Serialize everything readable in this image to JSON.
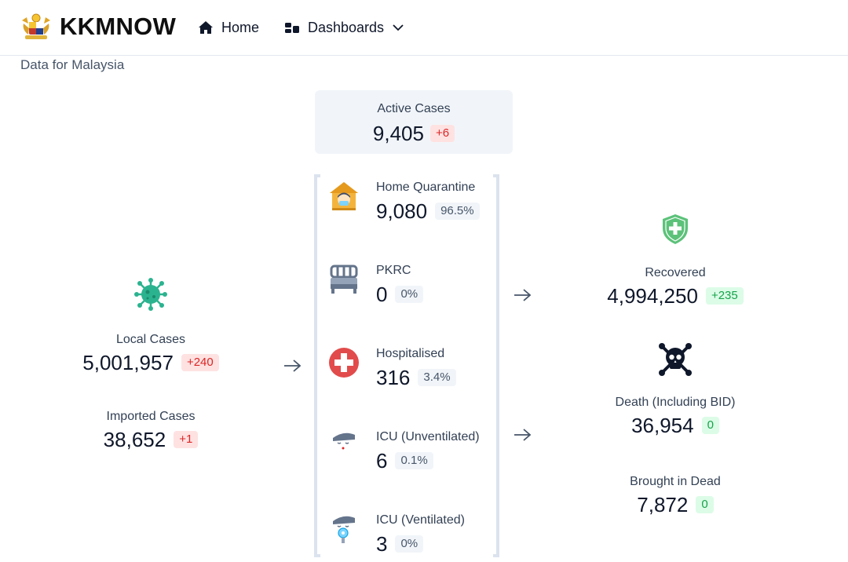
{
  "nav": {
    "brand": "KKMNOW",
    "home": "Home",
    "dashboards": "Dashboards"
  },
  "subtitle": "Data for Malaysia",
  "active": {
    "label": "Active Cases",
    "value": "9,405",
    "delta": "+6"
  },
  "categories": [
    {
      "label": "Home Quarantine",
      "value": "9,080",
      "pct": "96.5%",
      "icon": "home-quarantine-icon"
    },
    {
      "label": "PKRC",
      "value": "0",
      "pct": "0%",
      "icon": "bed-icon"
    },
    {
      "label": "Hospitalised",
      "value": "316",
      "pct": "3.4%",
      "icon": "hospital-cross-icon"
    },
    {
      "label": "ICU (Unventilated)",
      "value": "6",
      "pct": "0.1%",
      "icon": "icu-patient-icon"
    },
    {
      "label": "ICU (Ventilated)",
      "value": "3",
      "pct": "0%",
      "icon": "ventilated-patient-icon"
    }
  ],
  "local": {
    "label": "Local Cases",
    "value": "5,001,957",
    "delta": "+240",
    "icon": "virus-icon"
  },
  "imported": {
    "label": "Imported Cases",
    "value": "38,652",
    "delta": "+1"
  },
  "recovered": {
    "label": "Recovered",
    "value": "4,994,250",
    "delta": "+235",
    "icon": "shield-plus-icon"
  },
  "death": {
    "label": "Death (Including BID)",
    "value": "36,954",
    "delta": "0",
    "icon": "skull-crossbones-icon"
  },
  "bid": {
    "label": "Brought in Dead",
    "value": "7,872",
    "delta": "0"
  },
  "colors": {
    "red": "#dc2626",
    "green": "#16a34a",
    "virus": "#2bb38f",
    "shield": "#5cc27a"
  }
}
